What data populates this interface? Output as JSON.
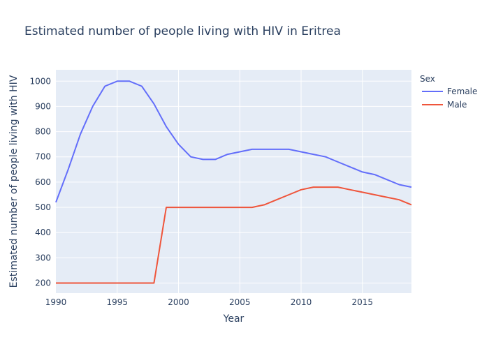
{
  "chart_data": {
    "type": "line",
    "title": "Estimated number of people living with HIV in Eritrea",
    "xlabel": "Year",
    "ylabel": "Estimated number of people living with HIV",
    "xlim": [
      1990,
      2019
    ],
    "ylim": [
      160,
      1045
    ],
    "x_ticks": [
      1990,
      1995,
      2000,
      2005,
      2010,
      2015
    ],
    "y_ticks": [
      200,
      300,
      400,
      500,
      600,
      700,
      800,
      900,
      1000
    ],
    "grid": true,
    "legend": {
      "title": "Sex",
      "placement": "top-right"
    },
    "x": [
      1990,
      1991,
      1992,
      1993,
      1994,
      1995,
      1996,
      1997,
      1998,
      1999,
      2000,
      2001,
      2002,
      2003,
      2004,
      2005,
      2006,
      2007,
      2008,
      2009,
      2010,
      2011,
      2012,
      2013,
      2014,
      2015,
      2016,
      2017,
      2018,
      2019
    ],
    "series": [
      {
        "name": "Female",
        "color": "#636efa",
        "values": [
          520,
          650,
          790,
          900,
          980,
          1000,
          1000,
          980,
          910,
          820,
          750,
          700,
          690,
          690,
          710,
          720,
          730,
          730,
          730,
          730,
          720,
          710,
          700,
          680,
          660,
          640,
          630,
          610,
          590,
          580
        ]
      },
      {
        "name": "Male",
        "color": "#ef553b",
        "values": [
          200,
          200,
          200,
          200,
          200,
          200,
          200,
          200,
          200,
          500,
          500,
          500,
          500,
          500,
          500,
          500,
          500,
          510,
          530,
          550,
          570,
          580,
          580,
          580,
          570,
          560,
          550,
          540,
          530,
          510
        ]
      }
    ]
  }
}
